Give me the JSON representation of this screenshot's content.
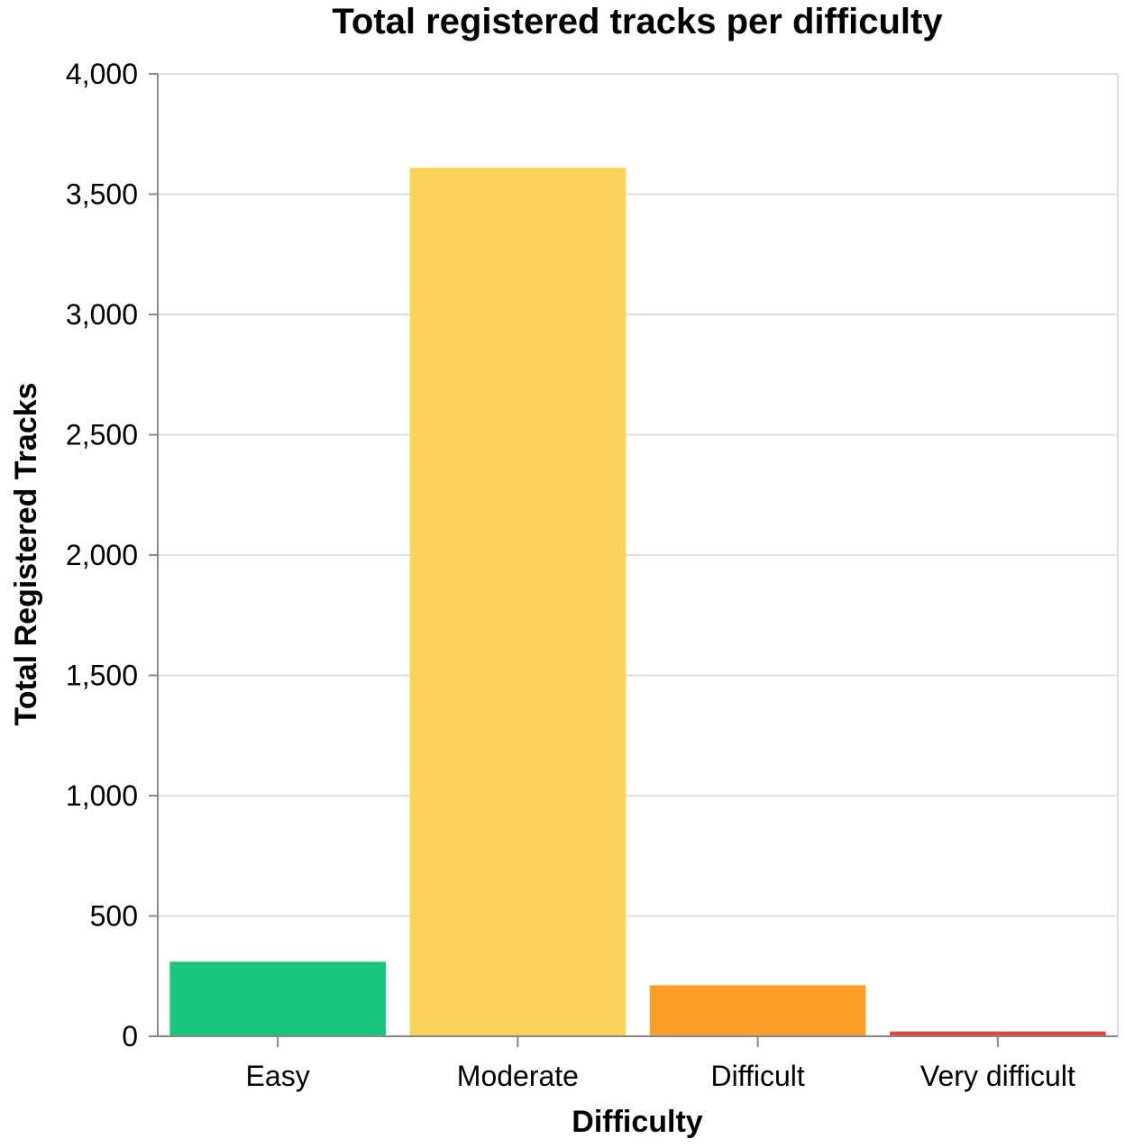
{
  "chart_data": {
    "type": "bar",
    "title": "Total registered tracks per difficulty",
    "xlabel": "Difficulty",
    "ylabel": "Total Registered Tracks",
    "categories": [
      "Easy",
      "Moderate",
      "Difficult",
      "Very difficult"
    ],
    "values": [
      310,
      3610,
      212,
      20
    ],
    "colors": [
      "#1bc47d",
      "#fcd25a",
      "#fd9e28",
      "#e8463b"
    ],
    "ylim": [
      0,
      4000
    ],
    "yticks": [
      0,
      500,
      1000,
      1500,
      2000,
      2500,
      3000,
      3500,
      4000
    ],
    "ytick_labels": [
      "0",
      "500",
      "1,000",
      "1,500",
      "2,000",
      "2,500",
      "3,000",
      "3,500",
      "4,000"
    ],
    "grid": true,
    "legend": "none"
  }
}
